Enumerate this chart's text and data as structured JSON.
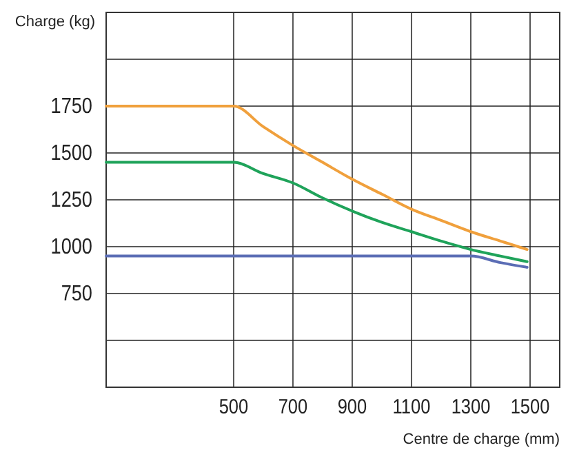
{
  "chart_data": {
    "type": "line",
    "xlabel": "Centre de charge (mm)",
    "ylabel": "Charge (kg)",
    "xlim": [
      70,
      1600
    ],
    "ylim": [
      250,
      2250
    ],
    "xticks": [
      500,
      700,
      900,
      1100,
      1300,
      1500
    ],
    "yticks": [
      {
        "value": 500,
        "label": null
      },
      750,
      1000,
      1250,
      1500,
      1750,
      {
        "value": 2000,
        "label": null
      }
    ],
    "grid": true,
    "marker": "none",
    "line_style": "solid",
    "series": [
      {
        "color": "#f0a03c",
        "x": [
          70,
          500,
          600,
          700,
          800,
          900,
          1000,
          1100,
          1200,
          1300,
          1400,
          1490
        ],
        "values": [
          1750,
          1750,
          1640,
          1540,
          1450,
          1360,
          1280,
          1200,
          1140,
          1080,
          1030,
          985
        ]
      },
      {
        "color": "#1fa35a",
        "x": [
          70,
          500,
          600,
          700,
          800,
          900,
          1000,
          1100,
          1200,
          1300,
          1400,
          1490
        ],
        "values": [
          1450,
          1450,
          1390,
          1340,
          1260,
          1190,
          1130,
          1080,
          1030,
          985,
          950,
          920
        ]
      },
      {
        "color": "#5b6db5",
        "x": [
          70,
          1300,
          1400,
          1490
        ],
        "values": [
          950,
          950,
          915,
          890
        ]
      }
    ]
  }
}
